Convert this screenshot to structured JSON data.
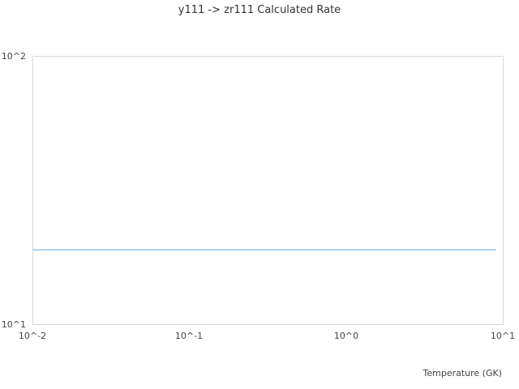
{
  "chart_data": {
    "type": "line",
    "title": "y111 -> zr111 Calculated Rate",
    "xlabel": "Temperature (GK)",
    "ylabel": "",
    "xscale": "log",
    "yscale": "log",
    "xlim": [
      0.01,
      10
    ],
    "ylim": [
      10,
      100
    ],
    "x_ticks": [
      "10^-2",
      "10^-1",
      "10^0",
      "10^1"
    ],
    "y_ticks": [
      "10^1",
      "10^2"
    ],
    "grid": false,
    "line_color": "#5aa9e6",
    "series": [
      {
        "x": [
          0.01,
          0.1,
          1,
          9
        ],
        "y": [
          19,
          19,
          19,
          19
        ]
      }
    ]
  }
}
